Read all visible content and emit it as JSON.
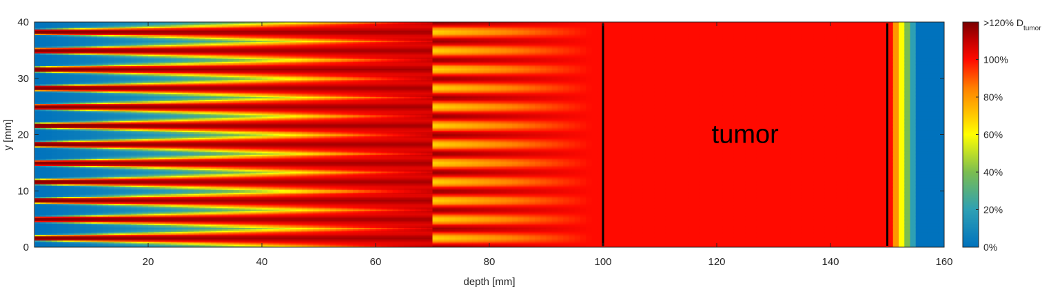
{
  "chart_data": {
    "type": "heatmap",
    "title": "",
    "xlabel": "depth [mm]",
    "ylabel": "y [mm]",
    "xlim": [
      0,
      160
    ],
    "ylim": [
      0,
      40
    ],
    "x_ticks": [
      {
        "value": 20,
        "label": "20"
      },
      {
        "value": 40,
        "label": "40"
      },
      {
        "value": 60,
        "label": "60"
      },
      {
        "value": 80,
        "label": "80"
      },
      {
        "value": 100,
        "label": "100"
      },
      {
        "value": 120,
        "label": "120"
      },
      {
        "value": 140,
        "label": "140"
      },
      {
        "value": 160,
        "label": "160"
      }
    ],
    "y_ticks": [
      {
        "value": 0,
        "label": "0"
      },
      {
        "value": 10,
        "label": "10"
      },
      {
        "value": 20,
        "label": "20"
      },
      {
        "value": 30,
        "label": "30"
      },
      {
        "value": 40,
        "label": "40"
      }
    ],
    "grid": false,
    "field": {
      "beamlet_count": 12,
      "beamlet_period_mm": 3.33,
      "beamlet_merge_depth_mm": 70,
      "homogeneous_depth_mm": 98,
      "distal_falloff_depths_mm": [
        151.0,
        152.5,
        153.5,
        154.5,
        155.5
      ],
      "entrance_dose_percent": 0,
      "peak_dose_percent": 120,
      "tumor_dose_percent": 100
    },
    "tumor_region": {
      "x_start": 100,
      "x_end": 150,
      "label": "tumor"
    },
    "colorbar": {
      "ticks": [
        {
          "value": 0,
          "label": "0%"
        },
        {
          "value": 20,
          "label": "20%"
        },
        {
          "value": 40,
          "label": "40%"
        },
        {
          "value": 60,
          "label": "60%"
        },
        {
          "value": 80,
          "label": "80%"
        },
        {
          "value": 100,
          "label": "100%"
        }
      ],
      "max": 120,
      "top_label_prefix": ">120% D",
      "top_label_subscript": "tumor"
    },
    "colormap": [
      {
        "value": 0,
        "color": "#0072bd"
      },
      {
        "value": 20,
        "color": "#2ea0b4"
      },
      {
        "value": 40,
        "color": "#7bbd50"
      },
      {
        "value": 60,
        "color": "#ffff00"
      },
      {
        "value": 72,
        "color": "#ffc000"
      },
      {
        "value": 85,
        "color": "#ff7f00"
      },
      {
        "value": 100,
        "color": "#ff0a00"
      },
      {
        "value": 110,
        "color": "#c40000"
      },
      {
        "value": 120,
        "color": "#7a0000"
      }
    ]
  }
}
